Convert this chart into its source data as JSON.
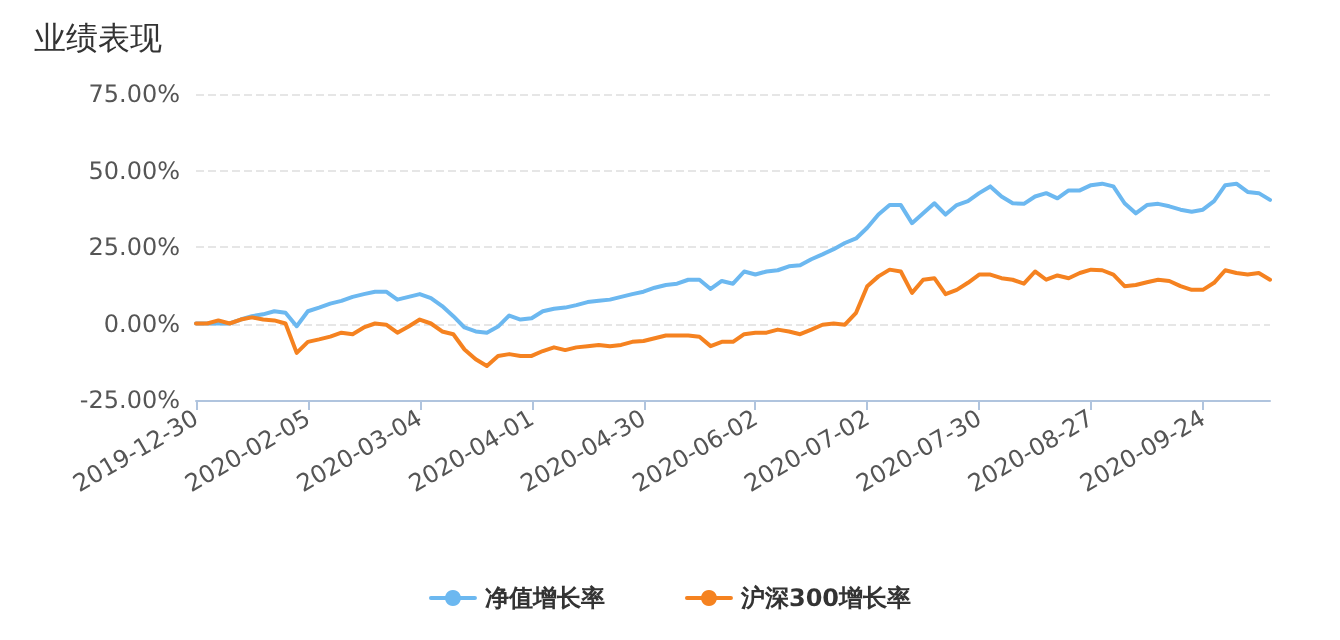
{
  "chart_data": {
    "type": "line",
    "title": "业绩表现",
    "categories": [
      "2019-12-30",
      null,
      null,
      null,
      null,
      null,
      null,
      null,
      null,
      null,
      "2020-02-05",
      null,
      null,
      null,
      null,
      null,
      null,
      null,
      null,
      null,
      "2020-03-04",
      null,
      null,
      null,
      null,
      null,
      null,
      null,
      null,
      null,
      "2020-04-01",
      null,
      null,
      null,
      null,
      null,
      null,
      null,
      null,
      null,
      "2020-04-30",
      null,
      null,
      null,
      null,
      null,
      null,
      null,
      null,
      null,
      "2020-06-02",
      null,
      null,
      null,
      null,
      null,
      null,
      null,
      null,
      null,
      "2020-07-02",
      null,
      null,
      null,
      null,
      null,
      null,
      null,
      null,
      null,
      "2020-07-30",
      null,
      null,
      null,
      null,
      null,
      null,
      null,
      null,
      null,
      "2020-08-27",
      null,
      null,
      null,
      null,
      null,
      null,
      null,
      null,
      null,
      "2020-09-24",
      null,
      null,
      null,
      null,
      null,
      null
    ],
    "series": [
      {
        "name": "净值增长率",
        "color": "#6cb8f0",
        "values": [
          0,
          0,
          0,
          0,
          1.3,
          2.4,
          3,
          4,
          3.5,
          -0.9,
          4,
          5.2,
          6.5,
          7.4,
          8.7,
          9.6,
          10.4,
          10.4,
          7.8,
          8.7,
          9.6,
          8.3,
          5.7,
          2.4,
          -1.3,
          -2.6,
          -3,
          -1,
          2.6,
          1.3,
          1.7,
          4,
          4.8,
          5.2,
          6,
          7,
          7.4,
          7.8,
          8.7,
          9.6,
          10.4,
          11.7,
          12.6,
          13,
          14.3,
          14.3,
          11.3,
          13.9,
          13,
          17,
          16,
          17,
          17.4,
          18.7,
          19,
          21,
          22.6,
          24.3,
          26.3,
          27.8,
          31.3,
          35.6,
          38.7,
          38.7,
          32.8,
          36,
          39.3,
          35.6,
          38.7,
          40,
          42.6,
          44.8,
          41.5,
          39.3,
          39.1,
          41.5,
          42.6,
          40.9,
          43.5,
          43.5,
          45.2,
          45.7,
          44.8,
          39.3,
          36,
          38.7,
          39.1,
          38.3,
          37.2,
          36.5,
          37.2,
          40,
          45.2,
          45.7,
          43,
          42.6,
          40.4
        ]
      },
      {
        "name": "沪深300增长率",
        "color": "#f58220",
        "values": [
          0,
          0,
          1,
          0,
          1.3,
          2,
          1.3,
          1,
          0,
          -9.6,
          -6,
          -5.2,
          -4.3,
          -3,
          -3.5,
          -1.3,
          0,
          -0.4,
          -3,
          -1,
          1.3,
          0,
          -2.6,
          -3.5,
          -8.5,
          -11.7,
          -13.9,
          -10.6,
          -10,
          -10.6,
          -10.6,
          -9,
          -7.8,
          -8.7,
          -7.8,
          -7.4,
          -7,
          -7.4,
          -7,
          -6,
          -5.7,
          -4.8,
          -3.9,
          -3.9,
          -3.9,
          -4.3,
          -7.4,
          -6,
          -6,
          -3.5,
          -3,
          -3,
          -2,
          -2.6,
          -3.5,
          -2,
          -0.4,
          0,
          -0.4,
          3.5,
          12.2,
          15.4,
          17.6,
          17,
          10,
          14.3,
          14.8,
          9.6,
          11,
          13.3,
          16,
          16,
          14.8,
          14.3,
          13,
          17,
          14.3,
          15.7,
          14.8,
          16.5,
          17.6,
          17.4,
          16,
          12.2,
          12.6,
          13.5,
          14.3,
          13.9,
          12.2,
          11,
          11,
          13.3,
          17.4,
          16.5,
          16,
          16.5,
          14.3
        ]
      }
    ],
    "ylim": [
      -25,
      75
    ],
    "yticks": [
      {
        "value": -25,
        "label": "-25.00%"
      },
      {
        "value": 0,
        "label": "0.00%"
      },
      {
        "value": 25,
        "label": "25.00%"
      },
      {
        "value": 50,
        "label": "50.00%"
      },
      {
        "value": 75,
        "label": "75.00%"
      }
    ],
    "grid": "y",
    "legend": "bottom",
    "marker": "none",
    "line_style": "solid"
  }
}
